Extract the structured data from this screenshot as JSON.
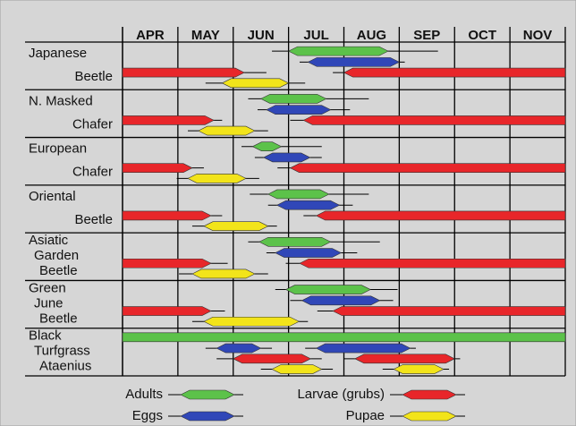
{
  "chart_data": {
    "type": "gantt",
    "categories": [
      "APR",
      "MAY",
      "JUN",
      "JUL",
      "AUG",
      "SEP",
      "OCT",
      "NOV"
    ],
    "xlim": [
      0,
      8
    ],
    "stages": [
      {
        "name": "Adults",
        "color": "#5cc24a"
      },
      {
        "name": "Eggs",
        "color": "#3047b8"
      },
      {
        "name": "Larvae (grubs)",
        "color": "#e8262a"
      },
      {
        "name": "Pupae",
        "color": "#f2e41a"
      }
    ],
    "rows": [
      {
        "label": [
          "Japanese",
          "Beetle"
        ],
        "bars": [
          {
            "stage": 0,
            "start": 3.0,
            "end": 4.8,
            "line": [
              2.7,
              5.7
            ]
          },
          {
            "stage": 1,
            "start": 3.35,
            "end": 5.0,
            "line": [
              3.2,
              5.1
            ]
          },
          {
            "stage": 2,
            "start": 0,
            "end": 2.2,
            "line": [
              0,
              2.6
            ]
          },
          {
            "stage": 2,
            "start": 4.0,
            "end": 8,
            "line": [
              3.8,
              8
            ]
          },
          {
            "stage": 3,
            "start": 1.8,
            "end": 3.0,
            "line": [
              1.5,
              3.3
            ]
          }
        ]
      },
      {
        "label": [
          "N. Masked",
          "Chafer"
        ],
        "bars": [
          {
            "stage": 0,
            "start": 2.5,
            "end": 3.68,
            "line": [
              2.27,
              4.45
            ]
          },
          {
            "stage": 1,
            "start": 2.6,
            "end": 3.76,
            "line": [
              2.44,
              4.11
            ]
          },
          {
            "stage": 2,
            "start": 0,
            "end": 1.65,
            "line": [
              0,
              1.8
            ]
          },
          {
            "stage": 2,
            "start": 3.27,
            "end": 8,
            "line": [
              3.03,
              8
            ]
          },
          {
            "stage": 3,
            "start": 1.37,
            "end": 2.39,
            "line": [
              1.18,
              2.63
            ]
          }
        ]
      },
      {
        "label": [
          "European",
          "Chafer"
        ],
        "bars": [
          {
            "stage": 0,
            "start": 2.35,
            "end": 2.87,
            "line": [
              2.15,
              3.6
            ]
          },
          {
            "stage": 1,
            "start": 2.55,
            "end": 3.39,
            "line": [
              2.39,
              3.6
            ]
          },
          {
            "stage": 2,
            "start": 0,
            "end": 1.26,
            "line": [
              0,
              1.47
            ]
          },
          {
            "stage": 2,
            "start": 3.03,
            "end": 8,
            "line": [
              2.8,
              8
            ]
          },
          {
            "stage": 3,
            "start": 1.18,
            "end": 2.23,
            "line": [
              0.98,
              2.47
            ]
          }
        ]
      },
      {
        "label": [
          "Oriental",
          "Beetle"
        ],
        "bars": [
          {
            "stage": 0,
            "start": 2.63,
            "end": 3.73,
            "line": [
              2.3,
              4.45
            ]
          },
          {
            "stage": 1,
            "start": 2.79,
            "end": 3.92,
            "line": [
              2.63,
              4.16
            ]
          },
          {
            "stage": 2,
            "start": 0,
            "end": 1.6,
            "line": [
              0,
              1.8
            ]
          },
          {
            "stage": 2,
            "start": 3.5,
            "end": 8,
            "line": [
              3.27,
              8
            ]
          },
          {
            "stage": 3,
            "start": 1.47,
            "end": 2.63,
            "line": [
              1.26,
              2.79
            ]
          }
        ]
      },
      {
        "label": [
          "Asiatic",
          "Garden",
          "Beetle"
        ],
        "bars": [
          {
            "stage": 0,
            "start": 2.47,
            "end": 3.76,
            "line": [
              2.27,
              4.65
            ]
          },
          {
            "stage": 1,
            "start": 2.76,
            "end": 3.95,
            "line": [
              2.6,
              4.24
            ]
          },
          {
            "stage": 2,
            "start": 0,
            "end": 1.6,
            "line": [
              0,
              1.9
            ]
          },
          {
            "stage": 2,
            "start": 3.2,
            "end": 8,
            "line": [
              2.95,
              8
            ]
          },
          {
            "stage": 3,
            "start": 1.26,
            "end": 2.39,
            "line": [
              1.02,
              2.63
            ]
          }
        ]
      },
      {
        "label": [
          "Green",
          "June",
          "Beetle"
        ],
        "bars": [
          {
            "stage": 0,
            "start": 2.95,
            "end": 4.48,
            "line": [
              2.76,
              4.97
            ]
          },
          {
            "stage": 1,
            "start": 3.24,
            "end": 4.65,
            "line": [
              3.03,
              4.89
            ]
          },
          {
            "stage": 2,
            "start": 0,
            "end": 1.6,
            "line": [
              0,
              1.85
            ]
          },
          {
            "stage": 2,
            "start": 3.8,
            "end": 8,
            "line": [
              3.52,
              8
            ]
          },
          {
            "stage": 3,
            "start": 1.47,
            "end": 3.19,
            "line": [
              1.26,
              3.35
            ]
          }
        ]
      },
      {
        "label": [
          "Black",
          "Turfgrass",
          "Ataenius"
        ],
        "bars": [
          {
            "stage": 0,
            "start": 0,
            "end": 8,
            "line": [
              0,
              8
            ]
          },
          {
            "stage": 1,
            "start": 1.7,
            "end": 2.5,
            "line": [
              1.5,
              2.7
            ]
          },
          {
            "stage": 1,
            "start": 3.5,
            "end": 5.2,
            "line": [
              3.3,
              5.3
            ]
          },
          {
            "stage": 2,
            "start": 2.0,
            "end": 3.4,
            "line": [
              1.7,
              3.6
            ]
          },
          {
            "stage": 2,
            "start": 4.2,
            "end": 6.0,
            "line": [
              4.0,
              6.1
            ]
          },
          {
            "stage": 3,
            "start": 2.7,
            "end": 3.6,
            "line": [
              2.5,
              3.8
            ]
          },
          {
            "stage": 3,
            "start": 4.9,
            "end": 5.8,
            "line": [
              4.7,
              5.9
            ]
          }
        ]
      }
    ]
  }
}
